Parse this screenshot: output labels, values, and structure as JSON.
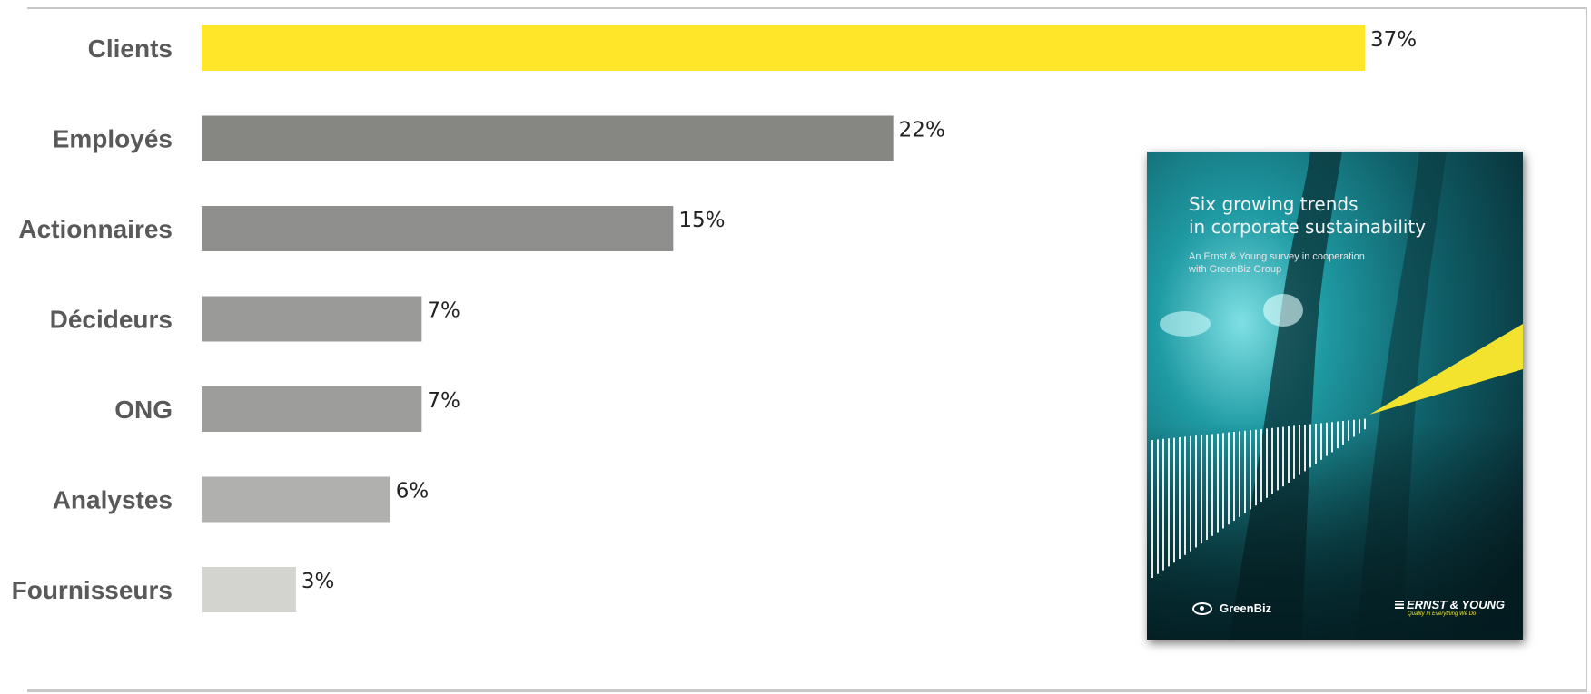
{
  "chart_data": {
    "type": "bar",
    "orientation": "horizontal",
    "categories": [
      "Clients",
      "Employés",
      "Actionnaires",
      "Décideurs",
      "ONG",
      "Analystes",
      "Fournisseurs"
    ],
    "values": [
      37,
      22,
      15,
      7,
      7,
      6,
      3
    ],
    "value_labels": [
      "37%",
      "22%",
      "15%",
      "7%",
      "7%",
      "6%",
      "3%"
    ],
    "colors": [
      "#ffe628",
      "#868683",
      "#8f8f8d",
      "#9a9a98",
      "#9d9d9b",
      "#b0b0ae",
      "#d3d3d0"
    ],
    "xlim": [
      0,
      37
    ],
    "grid": false,
    "legend": false,
    "title": "",
    "xlabel": "",
    "ylabel": ""
  },
  "report_cover": {
    "title": "Six growing trends\nin corporate sustainability",
    "subtitle_lines": [
      "An Ernst & Young survey in cooperation",
      "with GreenBiz Group"
    ],
    "logo_left": "GreenBiz",
    "logo_right": "ERNST & YOUNG",
    "logo_right_tagline": "Quality In Everything We Do",
    "colors": {
      "sea_dark": "#0c3640",
      "sea_light": "#1e8f99",
      "beam": "#f3e22e"
    }
  }
}
